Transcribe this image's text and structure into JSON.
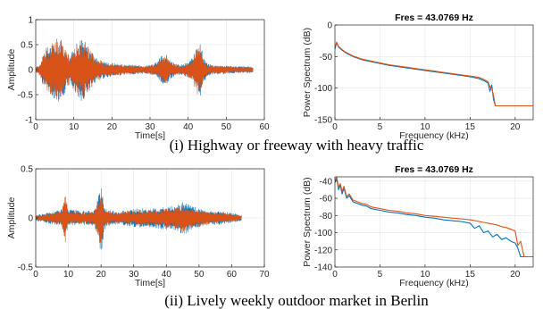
{
  "chart_data": [
    {
      "id": "p1",
      "type": "area",
      "title": "",
      "xlabel": "Time[s]",
      "ylabel": "Amplitude",
      "xlim": [
        0,
        60
      ],
      "ylim": [
        -1,
        1
      ],
      "xticks": [
        0,
        10,
        20,
        30,
        40,
        50,
        60
      ],
      "yticks": [
        -1,
        -0.5,
        0,
        0.5,
        1
      ],
      "xtick_labels": [
        "0",
        "10",
        "20",
        "30",
        "40",
        "50",
        "60"
      ],
      "ytick_labels": [
        "-1",
        "-0.5",
        "0",
        "0.5",
        "1"
      ],
      "grid": true,
      "colors": [
        "#0072BD",
        "#D95319"
      ],
      "series": [
        {
          "x": [
            0,
            1,
            2,
            3,
            4,
            5,
            6,
            7,
            8,
            9,
            10,
            11,
            12,
            13,
            14,
            15,
            16,
            17,
            18,
            19,
            20,
            21,
            22,
            23,
            24,
            25,
            26,
            27,
            28,
            29,
            30,
            31,
            32,
            33,
            34,
            35,
            36,
            37,
            38,
            39,
            40,
            41,
            42,
            43,
            44,
            45,
            46,
            47,
            48,
            49,
            50,
            51,
            52,
            53,
            54,
            55,
            56,
            57
          ],
          "env": [
            0.05,
            0.1,
            0.34,
            0.46,
            0.52,
            0.59,
            0.66,
            0.58,
            0.4,
            0.3,
            0.42,
            0.56,
            0.65,
            0.58,
            0.44,
            0.32,
            0.24,
            0.2,
            0.17,
            0.15,
            0.14,
            0.13,
            0.12,
            0.11,
            0.1,
            0.1,
            0.09,
            0.09,
            0.09,
            0.09,
            0.1,
            0.12,
            0.16,
            0.3,
            0.34,
            0.22,
            0.14,
            0.11,
            0.1,
            0.12,
            0.16,
            0.22,
            0.45,
            0.62,
            0.3,
            0.13,
            0.1,
            0.09,
            0.09,
            0.09,
            0.08,
            0.08,
            0.07,
            0.07,
            0.07,
            0.07,
            0.06,
            0.06
          ]
        },
        {
          "x": [
            0,
            1,
            2,
            3,
            4,
            5,
            6,
            7,
            8,
            9,
            10,
            11,
            12,
            13,
            14,
            15,
            16,
            17,
            18,
            19,
            20,
            21,
            22,
            23,
            24,
            25,
            26,
            27,
            28,
            29,
            30,
            31,
            32,
            33,
            34,
            35,
            36,
            37,
            38,
            39,
            40,
            41,
            42,
            43,
            44,
            45,
            46,
            47,
            48,
            49,
            50,
            51,
            52,
            53,
            54,
            55,
            56,
            57
          ],
          "env": [
            0.05,
            0.1,
            0.32,
            0.44,
            0.5,
            0.57,
            0.64,
            0.55,
            0.38,
            0.28,
            0.4,
            0.54,
            0.62,
            0.55,
            0.42,
            0.3,
            0.22,
            0.18,
            0.15,
            0.13,
            0.12,
            0.11,
            0.1,
            0.1,
            0.09,
            0.09,
            0.08,
            0.08,
            0.08,
            0.08,
            0.09,
            0.11,
            0.15,
            0.28,
            0.32,
            0.2,
            0.12,
            0.1,
            0.09,
            0.11,
            0.15,
            0.2,
            0.42,
            0.58,
            0.26,
            0.11,
            0.09,
            0.08,
            0.08,
            0.08,
            0.07,
            0.07,
            0.06,
            0.06,
            0.06,
            0.06,
            0.05,
            0.05
          ]
        }
      ]
    },
    {
      "id": "p2",
      "type": "line",
      "title": "Fres = 43.0769 Hz",
      "xlabel": "Frequency (kHz)",
      "ylabel": "Power Spectrum (dB)",
      "xlim": [
        0,
        22
      ],
      "ylim": [
        -150,
        0
      ],
      "xticks": [
        0,
        5,
        10,
        15,
        20
      ],
      "yticks": [
        -150,
        -100,
        -50,
        0
      ],
      "xtick_labels": [
        "0",
        "5",
        "10",
        "15",
        "20"
      ],
      "ytick_labels": [
        "-150",
        "-100",
        "-50",
        "0"
      ],
      "grid": true,
      "colors": [
        "#0072BD",
        "#D95319"
      ],
      "series": [
        {
          "x": [
            0,
            0.2,
            0.4,
            0.8,
            1.2,
            2,
            3,
            4,
            5,
            6,
            7,
            8,
            9,
            10,
            11,
            12,
            13,
            14,
            15,
            16,
            16.5,
            17,
            17.2,
            17.4,
            17.6,
            17.8,
            18,
            19,
            20,
            21,
            22
          ],
          "y": [
            -38,
            -28,
            -35,
            -40,
            -44,
            -50,
            -55,
            -58,
            -61,
            -64,
            -66,
            -68,
            -70,
            -72,
            -74,
            -76,
            -78,
            -80,
            -82,
            -85,
            -88,
            -92,
            -105,
            -95,
            -118,
            -128,
            -128,
            -128,
            -128,
            -128,
            -128
          ]
        },
        {
          "x": [
            0,
            0.2,
            0.4,
            0.8,
            1.2,
            2,
            3,
            4,
            5,
            6,
            7,
            8,
            9,
            10,
            11,
            12,
            13,
            14,
            15,
            16,
            16.5,
            17,
            17.2,
            17.4,
            17.6,
            17.8,
            18,
            19,
            20,
            21,
            22
          ],
          "y": [
            -36,
            -27,
            -34,
            -39,
            -43,
            -49,
            -54,
            -57,
            -60,
            -63,
            -65,
            -67,
            -69,
            -71,
            -73,
            -75,
            -77,
            -79,
            -81,
            -83,
            -86,
            -90,
            -98,
            -100,
            -112,
            -128,
            -128,
            -128,
            -128,
            -128,
            -128
          ]
        }
      ]
    },
    {
      "id": "p3",
      "type": "area",
      "title": "",
      "xlabel": "Time[s]",
      "ylabel": "Amplitude",
      "xlim": [
        0,
        70
      ],
      "ylim": [
        -0.5,
        0.5
      ],
      "xticks": [
        0,
        10,
        20,
        30,
        40,
        50,
        60,
        70
      ],
      "yticks": [
        -0.5,
        0,
        0.5
      ],
      "xtick_labels": [
        "0",
        "10",
        "20",
        "30",
        "40",
        "50",
        "60",
        "70"
      ],
      "ytick_labels": [
        "-0.5",
        "0",
        "0.5"
      ],
      "grid": true,
      "colors": [
        "#0072BD",
        "#D95319"
      ],
      "series": [
        {
          "x": [
            0,
            2,
            4,
            6,
            8,
            9,
            10,
            12,
            14,
            16,
            18,
            19,
            20,
            21,
            22,
            24,
            26,
            28,
            30,
            32,
            34,
            36,
            38,
            40,
            42,
            44,
            45,
            46,
            48,
            50,
            52,
            54,
            56,
            58,
            60,
            62,
            63
          ],
          "env": [
            0.03,
            0.04,
            0.06,
            0.07,
            0.1,
            0.2,
            0.09,
            0.08,
            0.07,
            0.07,
            0.08,
            0.2,
            0.38,
            0.12,
            0.08,
            0.07,
            0.07,
            0.08,
            0.09,
            0.1,
            0.09,
            0.1,
            0.11,
            0.12,
            0.12,
            0.14,
            0.18,
            0.16,
            0.12,
            0.1,
            0.08,
            0.07,
            0.07,
            0.06,
            0.05,
            0.04,
            0.03
          ]
        },
        {
          "x": [
            0,
            2,
            4,
            6,
            8,
            9,
            10,
            12,
            14,
            16,
            18,
            19,
            20,
            21,
            22,
            24,
            26,
            28,
            30,
            32,
            34,
            36,
            38,
            40,
            42,
            44,
            45,
            46,
            48,
            50,
            52,
            54,
            56,
            58,
            60,
            62,
            63
          ],
          "env": [
            0.02,
            0.03,
            0.05,
            0.06,
            0.08,
            0.26,
            0.08,
            0.07,
            0.06,
            0.06,
            0.07,
            0.18,
            0.36,
            0.1,
            0.07,
            0.06,
            0.06,
            0.07,
            0.07,
            0.08,
            0.08,
            0.08,
            0.09,
            0.1,
            0.1,
            0.12,
            0.16,
            0.14,
            0.1,
            0.09,
            0.07,
            0.06,
            0.06,
            0.05,
            0.04,
            0.03,
            0.02
          ]
        }
      ]
    },
    {
      "id": "p4",
      "type": "line",
      "title": "Fres = 43.0769 Hz",
      "xlabel": "Frequency (kHz)",
      "ylabel": "Power Spectrum (dB)",
      "xlim": [
        0,
        22
      ],
      "ylim": [
        -140,
        -35
      ],
      "xticks": [
        0,
        5,
        10,
        15,
        20
      ],
      "yticks": [
        -140,
        -120,
        -100,
        -80,
        -60,
        -40
      ],
      "xtick_labels": [
        "0",
        "5",
        "10",
        "15",
        "20"
      ],
      "ytick_labels": [
        "-140",
        "-120",
        "-100",
        "-80",
        "-60",
        "-40"
      ],
      "grid": true,
      "colors": [
        "#0072BD",
        "#D95319"
      ],
      "series": [
        {
          "x": [
            0,
            0.2,
            0.4,
            0.6,
            0.8,
            1.0,
            1.3,
            1.6,
            2,
            2.5,
            3,
            3.5,
            4,
            5,
            6,
            7,
            8,
            9,
            10,
            11,
            12,
            13,
            14,
            15,
            15.5,
            16,
            16.5,
            17,
            17.5,
            18,
            18.5,
            19,
            19.5,
            20,
            20.3,
            20.6,
            21,
            22
          ],
          "y": [
            -42,
            -36,
            -50,
            -45,
            -55,
            -48,
            -60,
            -57,
            -64,
            -66,
            -68,
            -69,
            -72,
            -74,
            -76,
            -77,
            -79,
            -80,
            -82,
            -83,
            -85,
            -86,
            -87,
            -89,
            -95,
            -92,
            -100,
            -98,
            -105,
            -102,
            -108,
            -106,
            -110,
            -112,
            -118,
            -128,
            -128,
            -128
          ]
        },
        {
          "x": [
            0,
            0.2,
            0.4,
            0.6,
            0.8,
            1.0,
            1.3,
            1.6,
            2,
            2.5,
            3,
            3.5,
            4,
            5,
            6,
            7,
            8,
            9,
            10,
            11,
            12,
            13,
            14,
            15,
            15.5,
            16,
            16.5,
            17,
            17.5,
            18,
            18.5,
            19,
            19.5,
            20,
            20.3,
            20.6,
            21,
            22
          ],
          "y": [
            -40,
            -35,
            -47,
            -43,
            -52,
            -46,
            -58,
            -55,
            -62,
            -64,
            -66,
            -67,
            -70,
            -72,
            -74,
            -75,
            -77,
            -78,
            -80,
            -81,
            -82,
            -83,
            -84,
            -85,
            -86,
            -87,
            -88,
            -89,
            -90,
            -91,
            -93,
            -94,
            -96,
            -98,
            -115,
            -110,
            -128,
            -128
          ]
        }
      ]
    }
  ],
  "captions": {
    "top": "(i) Highway or freeway with heavy traffic",
    "bottom": "(ii) Lively weekly outdoor market in Berlin"
  }
}
